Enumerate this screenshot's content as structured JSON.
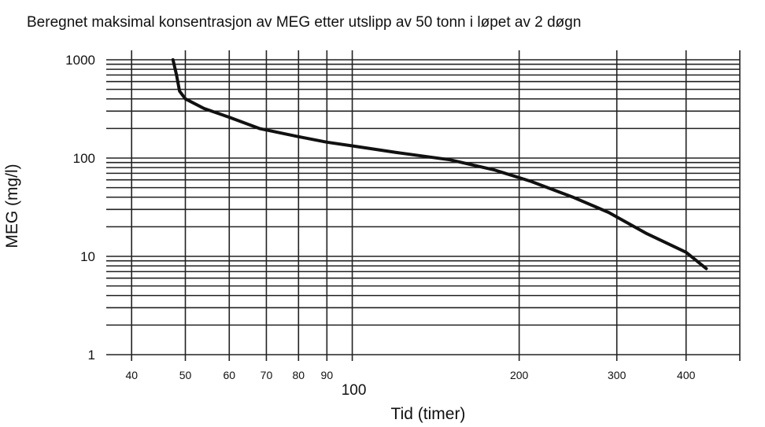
{
  "chart_data": {
    "type": "line",
    "title": "Beregnet maksimal konsentrasjon av MEG etter utslipp av 50 tonn i løpet av 2 døgn",
    "xlabel": "Tid (timer)",
    "ylabel": "MEG (mg/l)",
    "x_scale": "log",
    "y_scale": "log",
    "xlim": [
      36,
      500
    ],
    "ylim": [
      1,
      1000
    ],
    "x_ticks": [
      {
        "value": 40,
        "label": "40"
      },
      {
        "value": 50,
        "label": "50"
      },
      {
        "value": 60,
        "label": "60"
      },
      {
        "value": 70,
        "label": "70"
      },
      {
        "value": 80,
        "label": "80"
      },
      {
        "value": 90,
        "label": "90"
      },
      {
        "value": 100,
        "label": "100"
      },
      {
        "value": 200,
        "label": "200"
      },
      {
        "value": 300,
        "label": "300"
      },
      {
        "value": 400,
        "label": "400"
      }
    ],
    "y_ticks": [
      {
        "value": 1,
        "label": "1"
      },
      {
        "value": 10,
        "label": "10"
      },
      {
        "value": 100,
        "label": "100"
      },
      {
        "value": 1000,
        "label": "1000"
      }
    ],
    "grid": true,
    "series": [
      {
        "color": "#111111",
        "points": [
          {
            "x": 47.5,
            "y": 1000
          },
          {
            "x": 48.2,
            "y": 700
          },
          {
            "x": 48.8,
            "y": 480
          },
          {
            "x": 50,
            "y": 400
          },
          {
            "x": 54,
            "y": 320
          },
          {
            "x": 60,
            "y": 260
          },
          {
            "x": 68,
            "y": 200
          },
          {
            "x": 80,
            "y": 165
          },
          {
            "x": 90,
            "y": 145
          },
          {
            "x": 100,
            "y": 133
          },
          {
            "x": 120,
            "y": 114
          },
          {
            "x": 150,
            "y": 96
          },
          {
            "x": 180,
            "y": 76
          },
          {
            "x": 210,
            "y": 58
          },
          {
            "x": 250,
            "y": 40
          },
          {
            "x": 290,
            "y": 28
          },
          {
            "x": 340,
            "y": 17
          },
          {
            "x": 400,
            "y": 11
          },
          {
            "x": 435,
            "y": 7.5
          }
        ]
      }
    ]
  }
}
